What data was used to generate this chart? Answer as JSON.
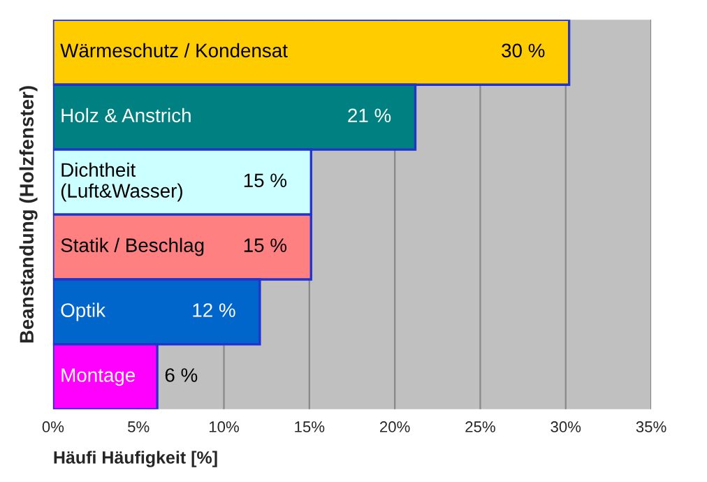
{
  "chart_data": {
    "type": "bar",
    "orientation": "horizontal",
    "xlabel": "Häufi Häufigkeit [%]",
    "ylabel": "Beanstandung (Holzfenster)",
    "categories": [
      "Wärmeschutz / Kondensat",
      "Holz & Anstrich",
      "Dichtheit\n(Luft&Wasser)",
      "Statik / Beschlag",
      "Optik",
      "Montage"
    ],
    "values": [
      30.2,
      21.2,
      15.1,
      15.1,
      12.1,
      6.1
    ],
    "value_labels": [
      "30 %",
      "21 %",
      "15 %",
      "15 %",
      "12 %",
      "6 %"
    ],
    "colors": [
      "#ffcc00",
      "#008080",
      "#ccffff",
      "#ff8080",
      "#0066cc",
      "#ff00ff"
    ],
    "xlim": [
      0,
      35
    ],
    "xticks": [
      {
        "value": 0,
        "label": "0%"
      },
      {
        "value": 5,
        "label": "5%"
      },
      {
        "value": 10,
        "label": "10%"
      },
      {
        "value": 15,
        "label": "15%"
      },
      {
        "value": 20,
        "label": "20%"
      },
      {
        "value": 25,
        "label": "25%"
      },
      {
        "value": 30,
        "label": "30%"
      },
      {
        "value": 35,
        "label": "35%"
      }
    ],
    "grid": "x",
    "legend": false
  }
}
